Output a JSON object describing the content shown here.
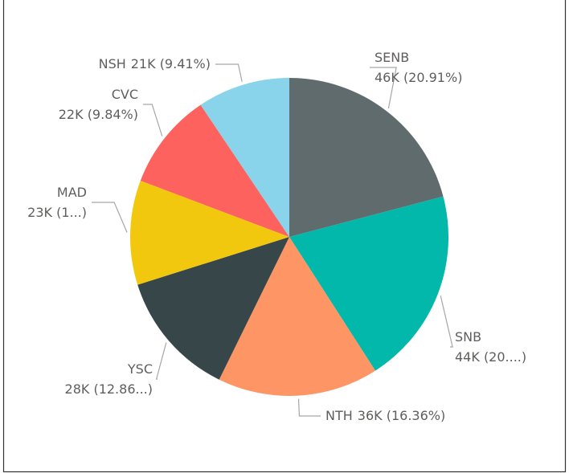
{
  "chart_data": {
    "type": "pie",
    "categories": [
      "SENB",
      "SNB",
      "NTH",
      "YSC",
      "MAD",
      "CVC",
      "NSH"
    ],
    "values": [
      46002,
      44000,
      35992,
      28292,
      23364,
      21648,
      20702
    ],
    "value_labels": [
      "46K (20.91%)",
      "44K (20....)",
      "36K (16.36%)",
      "28K (12.86...)",
      "23K (1...)",
      "22K (9.84%)",
      "21K (9.41%)"
    ],
    "colors": [
      "#5f6b6d",
      "#01b8aa",
      "#fd9565",
      "#374649",
      "#f2c80f",
      "#fd625e",
      "#8ad4eb"
    ]
  }
}
